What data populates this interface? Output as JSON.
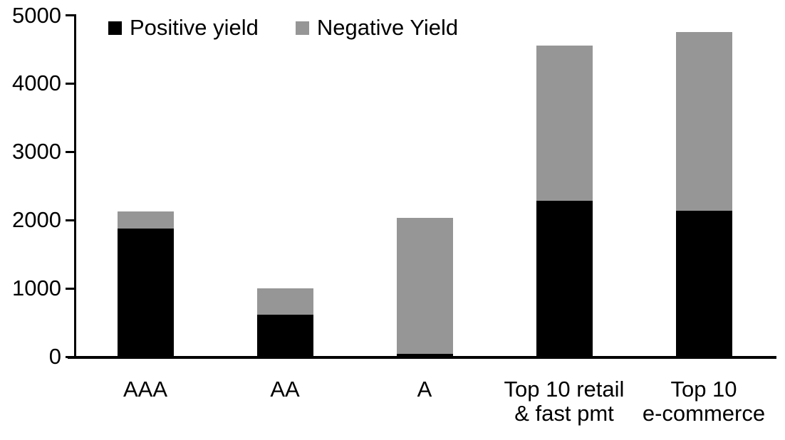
{
  "chart_data": {
    "type": "bar",
    "stacked": true,
    "title": "",
    "xlabel": "",
    "ylabel": "",
    "categories": [
      "AAA",
      "AA",
      "A",
      "Top 10 retail & fast pmt",
      "Top 10 e-commerce"
    ],
    "category_label_lines": [
      [
        "AAA"
      ],
      [
        "AA"
      ],
      [
        "A"
      ],
      [
        "Top 10 retail",
        "& fast pmt"
      ],
      [
        "Top 10",
        "e-commerce"
      ]
    ],
    "series": [
      {
        "name": "Positive yield",
        "color": "#000000",
        "values": [
          1880,
          620,
          40,
          2280,
          2140
        ]
      },
      {
        "name": "Negative Yield",
        "color": "#969696",
        "values": [
          250,
          380,
          1990,
          2280,
          2620
        ]
      }
    ],
    "totals": [
      2130,
      1000,
      2030,
      4560,
      4760
    ],
    "ylim": [
      0,
      5000
    ],
    "yticks": [
      0,
      1000,
      2000,
      3000,
      4000,
      5000
    ],
    "grid": "off",
    "legend_position": "top",
    "axis_color": "#000000",
    "background_color": "#ffffff"
  }
}
